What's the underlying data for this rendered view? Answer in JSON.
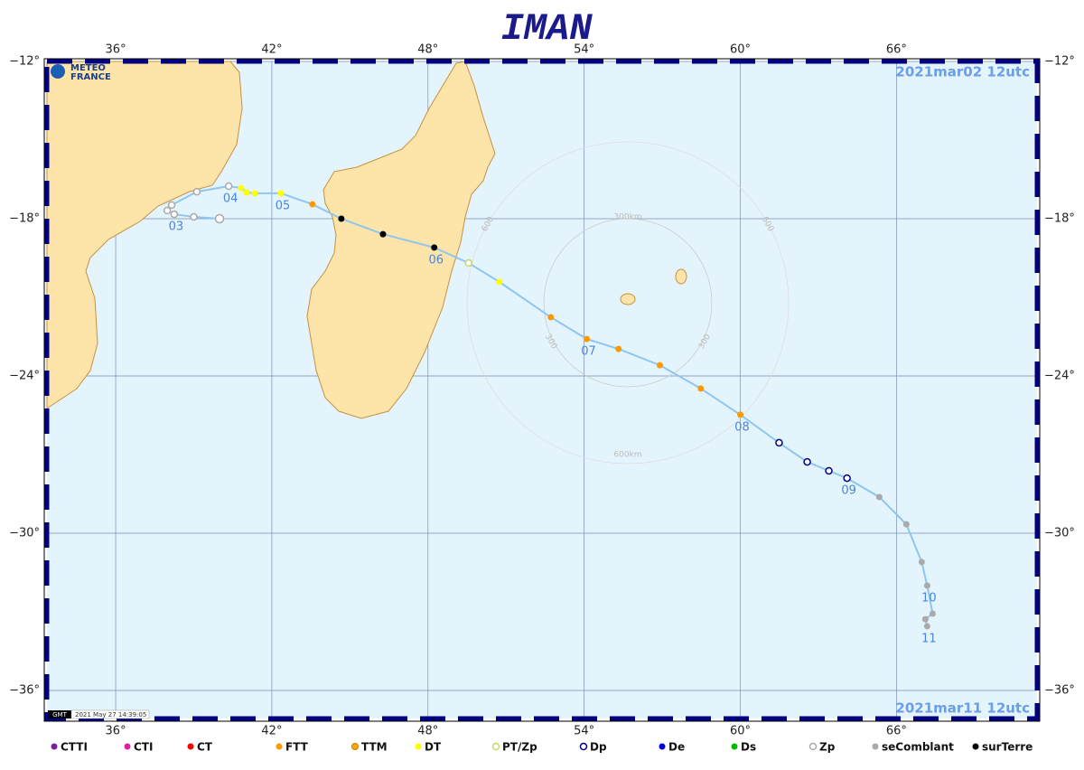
{
  "title": "IMAN",
  "logo": [
    "METEO",
    "FRANCE"
  ],
  "start_date": "2021mar02  12utc",
  "end_date": "2021mar11  12utc",
  "timestamp_tag": "GMT",
  "timestamp": "2021 May 27 14:39:05",
  "extent": {
    "lon": [
      33.36,
      71.4
    ],
    "lat": [
      -12,
      -37.07
    ]
  },
  "lon_ticks": [
    {
      "value": 36,
      "label": "36°"
    },
    {
      "value": 42,
      "label": "42°"
    },
    {
      "value": 48,
      "label": "48°"
    },
    {
      "value": 54,
      "label": "54°"
    },
    {
      "value": 60,
      "label": "60°"
    },
    {
      "value": 66,
      "label": "66°"
    }
  ],
  "lat_ticks": [
    {
      "value": -12,
      "label": "−12°"
    },
    {
      "value": -18,
      "label": "−18°"
    },
    {
      "value": -24,
      "label": "−24°"
    },
    {
      "value": -30,
      "label": "−30°"
    },
    {
      "value": -36,
      "label": "−36°"
    }
  ],
  "range_labels": [
    "300km",
    "600km",
    "300",
    "600",
    "300",
    "600"
  ],
  "legend": [
    {
      "label": "CTTI",
      "color": "#7b1fa2",
      "style": "filled"
    },
    {
      "label": "CTI",
      "color": "#e020a0",
      "style": "filled"
    },
    {
      "label": "CT",
      "color": "#ff0000",
      "style": "filled"
    },
    {
      "label": "FTT",
      "color": "#ff9900",
      "style": "filled"
    },
    {
      "label": "TTM",
      "color": "#ffaa00",
      "style": "outlined"
    },
    {
      "label": "DT",
      "color": "#ffff00",
      "style": "filled"
    },
    {
      "label": "PT/Zp",
      "color": "#c8d860",
      "style": "ring"
    },
    {
      "label": "Dp",
      "color": "#000080",
      "style": "ring"
    },
    {
      "label": "De",
      "color": "#0000dd",
      "style": "filled"
    },
    {
      "label": "Ds",
      "color": "#00bb00",
      "style": "filled"
    },
    {
      "label": "Zp",
      "color": "#aaaaaa",
      "style": "ring"
    },
    {
      "label": "seComblant",
      "color": "#aaaaaa",
      "style": "filled"
    },
    {
      "label": "surTerre",
      "color": "#000000",
      "style": "filled"
    }
  ],
  "track": [
    {
      "lon": 39.99,
      "lat": -18.0,
      "class": "Zp"
    },
    {
      "lon": 39.0,
      "lat": -17.93,
      "class": "Zp"
    },
    {
      "lon": 38.25,
      "lat": -17.83,
      "class": "Zp",
      "label": "03"
    },
    {
      "lon": 37.98,
      "lat": -17.69,
      "class": "Zp"
    },
    {
      "lon": 38.15,
      "lat": -17.48,
      "class": "Zp"
    },
    {
      "lon": 39.12,
      "lat": -16.97,
      "class": "Zp"
    },
    {
      "lon": 40.34,
      "lat": -16.76,
      "class": "Zp",
      "label": "04"
    },
    {
      "lon": 40.82,
      "lat": -16.83,
      "class": "DT"
    },
    {
      "lon": 41.03,
      "lat": -17.0,
      "class": "DT"
    },
    {
      "lon": 41.34,
      "lat": -17.03,
      "class": "DT"
    },
    {
      "lon": 42.35,
      "lat": -17.03,
      "class": "DT",
      "label": "05"
    },
    {
      "lon": 43.56,
      "lat": -17.45,
      "class": "FTT"
    },
    {
      "lon": 44.67,
      "lat": -18.0,
      "class": "surTerre"
    },
    {
      "lon": 46.27,
      "lat": -18.59,
      "class": "surTerre"
    },
    {
      "lon": 48.24,
      "lat": -19.1,
      "class": "surTerre",
      "label": "06"
    },
    {
      "lon": 49.56,
      "lat": -19.69,
      "class": "PT/Zp"
    },
    {
      "lon": 50.74,
      "lat": -20.41,
      "class": "DT"
    },
    {
      "lon": 52.72,
      "lat": -21.76,
      "class": "FTT"
    },
    {
      "lon": 54.1,
      "lat": -22.59,
      "class": "FTT",
      "label": "07"
    },
    {
      "lon": 55.32,
      "lat": -22.97,
      "class": "FTT"
    },
    {
      "lon": 56.91,
      "lat": -23.59,
      "class": "FTT"
    },
    {
      "lon": 58.48,
      "lat": -24.48,
      "class": "FTT"
    },
    {
      "lon": 60.0,
      "lat": -25.48,
      "class": "FTT",
      "label": "08"
    },
    {
      "lon": 61.49,
      "lat": -26.55,
      "class": "Dp"
    },
    {
      "lon": 62.57,
      "lat": -27.28,
      "class": "Dp"
    },
    {
      "lon": 63.4,
      "lat": -27.62,
      "class": "Dp"
    },
    {
      "lon": 64.1,
      "lat": -27.9,
      "class": "Dp",
      "label": "09"
    },
    {
      "lon": 65.34,
      "lat": -28.62,
      "class": "seComblant"
    },
    {
      "lon": 66.38,
      "lat": -29.66,
      "class": "seComblant"
    },
    {
      "lon": 66.97,
      "lat": -31.1,
      "class": "seComblant"
    },
    {
      "lon": 67.18,
      "lat": -32.0,
      "class": "seComblant",
      "label": "10"
    },
    {
      "lon": 67.39,
      "lat": -33.07,
      "class": "seComblant"
    },
    {
      "lon": 67.11,
      "lat": -33.28,
      "class": "seComblant"
    },
    {
      "lon": 67.18,
      "lat": -33.55,
      "class": "seComblant",
      "label": "11"
    }
  ]
}
